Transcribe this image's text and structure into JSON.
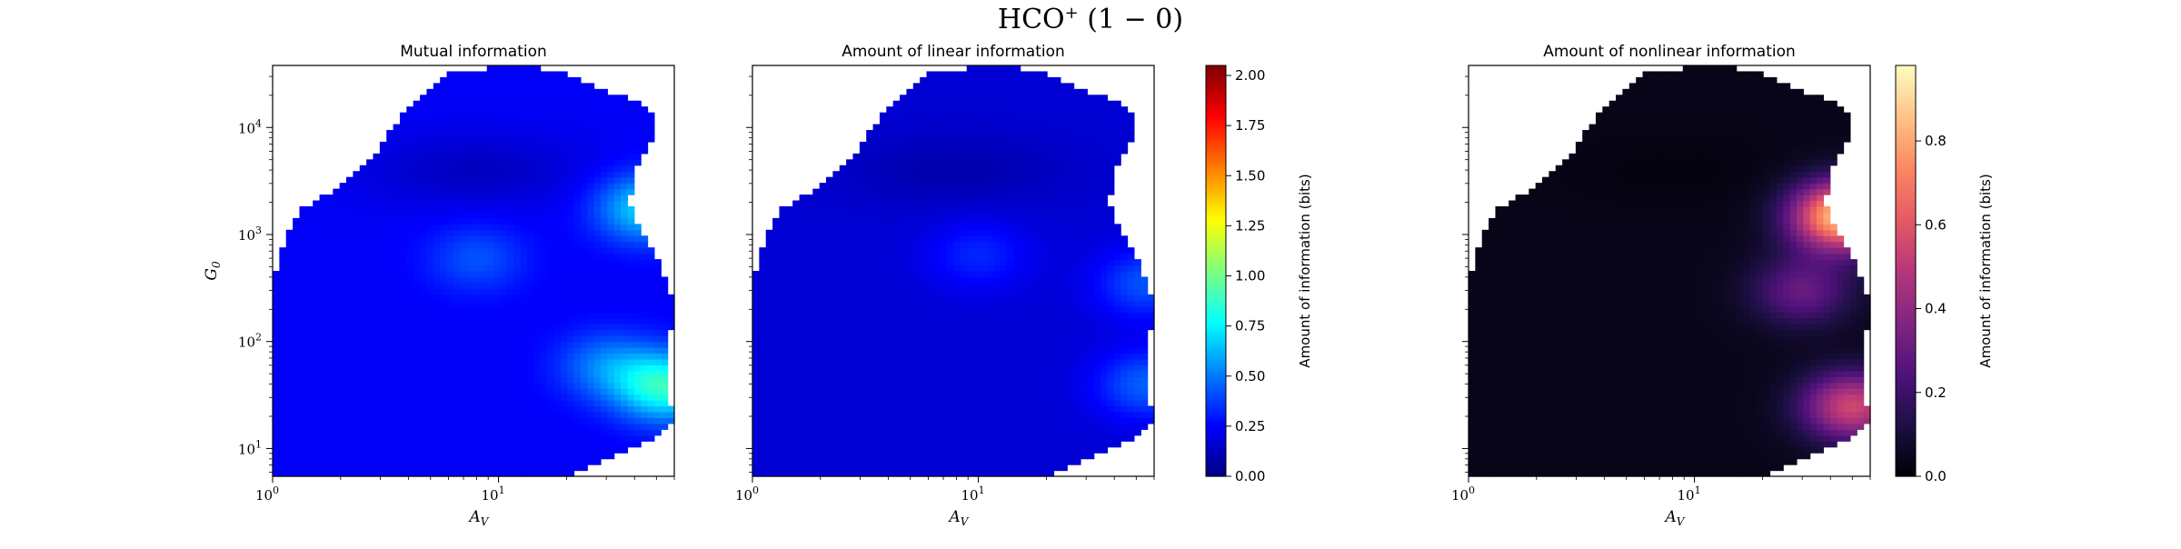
{
  "figure": {
    "suptitle_main": "HCO",
    "suptitle_sup": "+",
    "suptitle_rest": " (1 − 0)"
  },
  "colors": {
    "jet": [
      "#00007f",
      "#0000ff",
      "#007fff",
      "#00ffff",
      "#7fff7f",
      "#ffff00",
      "#ff7f00",
      "#ff0000",
      "#7f0000"
    ],
    "magma": [
      "#000004",
      "#1c1044",
      "#4f127b",
      "#812581",
      "#b5367a",
      "#e55964",
      "#fb8761",
      "#fec287",
      "#fcfdbf"
    ]
  },
  "chart_data": [
    {
      "type": "heatmap",
      "title": "Mutual information",
      "xlabel": "A_V",
      "ylabel": "G_0",
      "xscale": "log",
      "yscale": "log",
      "xlim": [
        1,
        60
      ],
      "ylim": [
        5.5,
        38000
      ],
      "x_tick_labels": [
        "10^0",
        "10^1"
      ],
      "y_tick_labels": [
        "10^1",
        "10^2",
        "10^3",
        "10^4"
      ],
      "colormap": "jet",
      "vlim": [
        0,
        2.05
      ],
      "hotspots": [
        {
          "A_V": 55,
          "G_0": 38,
          "value": 0.85
        },
        {
          "A_V": 45,
          "G_0": 1800,
          "value": 0.7
        },
        {
          "A_V": 8,
          "G_0": 600,
          "value": 0.42
        },
        {
          "A_V": 30,
          "G_0": 60,
          "value": 0.5
        }
      ],
      "background_value": 0.24
    },
    {
      "type": "heatmap",
      "title": "Amount of linear information",
      "xlabel": "A_V",
      "xscale": "log",
      "yscale": "log",
      "xlim": [
        1,
        60
      ],
      "ylim": [
        5.5,
        38000
      ],
      "x_tick_labels": [
        "10^0",
        "10^1"
      ],
      "colormap": "jet",
      "vlim": [
        0,
        2.05
      ],
      "hotspots": [
        {
          "A_V": 55,
          "G_0": 40,
          "value": 0.45
        },
        {
          "A_V": 55,
          "G_0": 350,
          "value": 0.42
        },
        {
          "A_V": 10,
          "G_0": 650,
          "value": 0.33
        }
      ],
      "background_value": 0.17,
      "colorbar": {
        "label": "Amount of information (bits)",
        "ticks": [
          "0.00",
          "0.25",
          "0.50",
          "0.75",
          "1.00",
          "1.25",
          "1.50",
          "1.75",
          "2.00"
        ],
        "range": [
          0,
          2.05
        ]
      }
    },
    {
      "type": "heatmap",
      "title": "Amount of nonlinear information",
      "xlabel": "A_V",
      "xscale": "log",
      "yscale": "log",
      "xlim": [
        1,
        60
      ],
      "ylim": [
        5.5,
        38000
      ],
      "x_tick_labels": [
        "10^0",
        "10^1"
      ],
      "colormap": "magma",
      "vlim": [
        0,
        0.98
      ],
      "hotspots": [
        {
          "A_V": 45,
          "G_0": 1500,
          "value": 0.88
        },
        {
          "A_V": 50,
          "G_0": 25,
          "value": 0.55
        },
        {
          "A_V": 30,
          "G_0": 300,
          "value": 0.3
        }
      ],
      "background_value": 0.04,
      "colorbar": {
        "label": "Amount of information (bits)",
        "ticks": [
          "0.0",
          "0.2",
          "0.4",
          "0.6",
          "0.8"
        ],
        "range": [
          0,
          0.98
        ]
      }
    }
  ]
}
